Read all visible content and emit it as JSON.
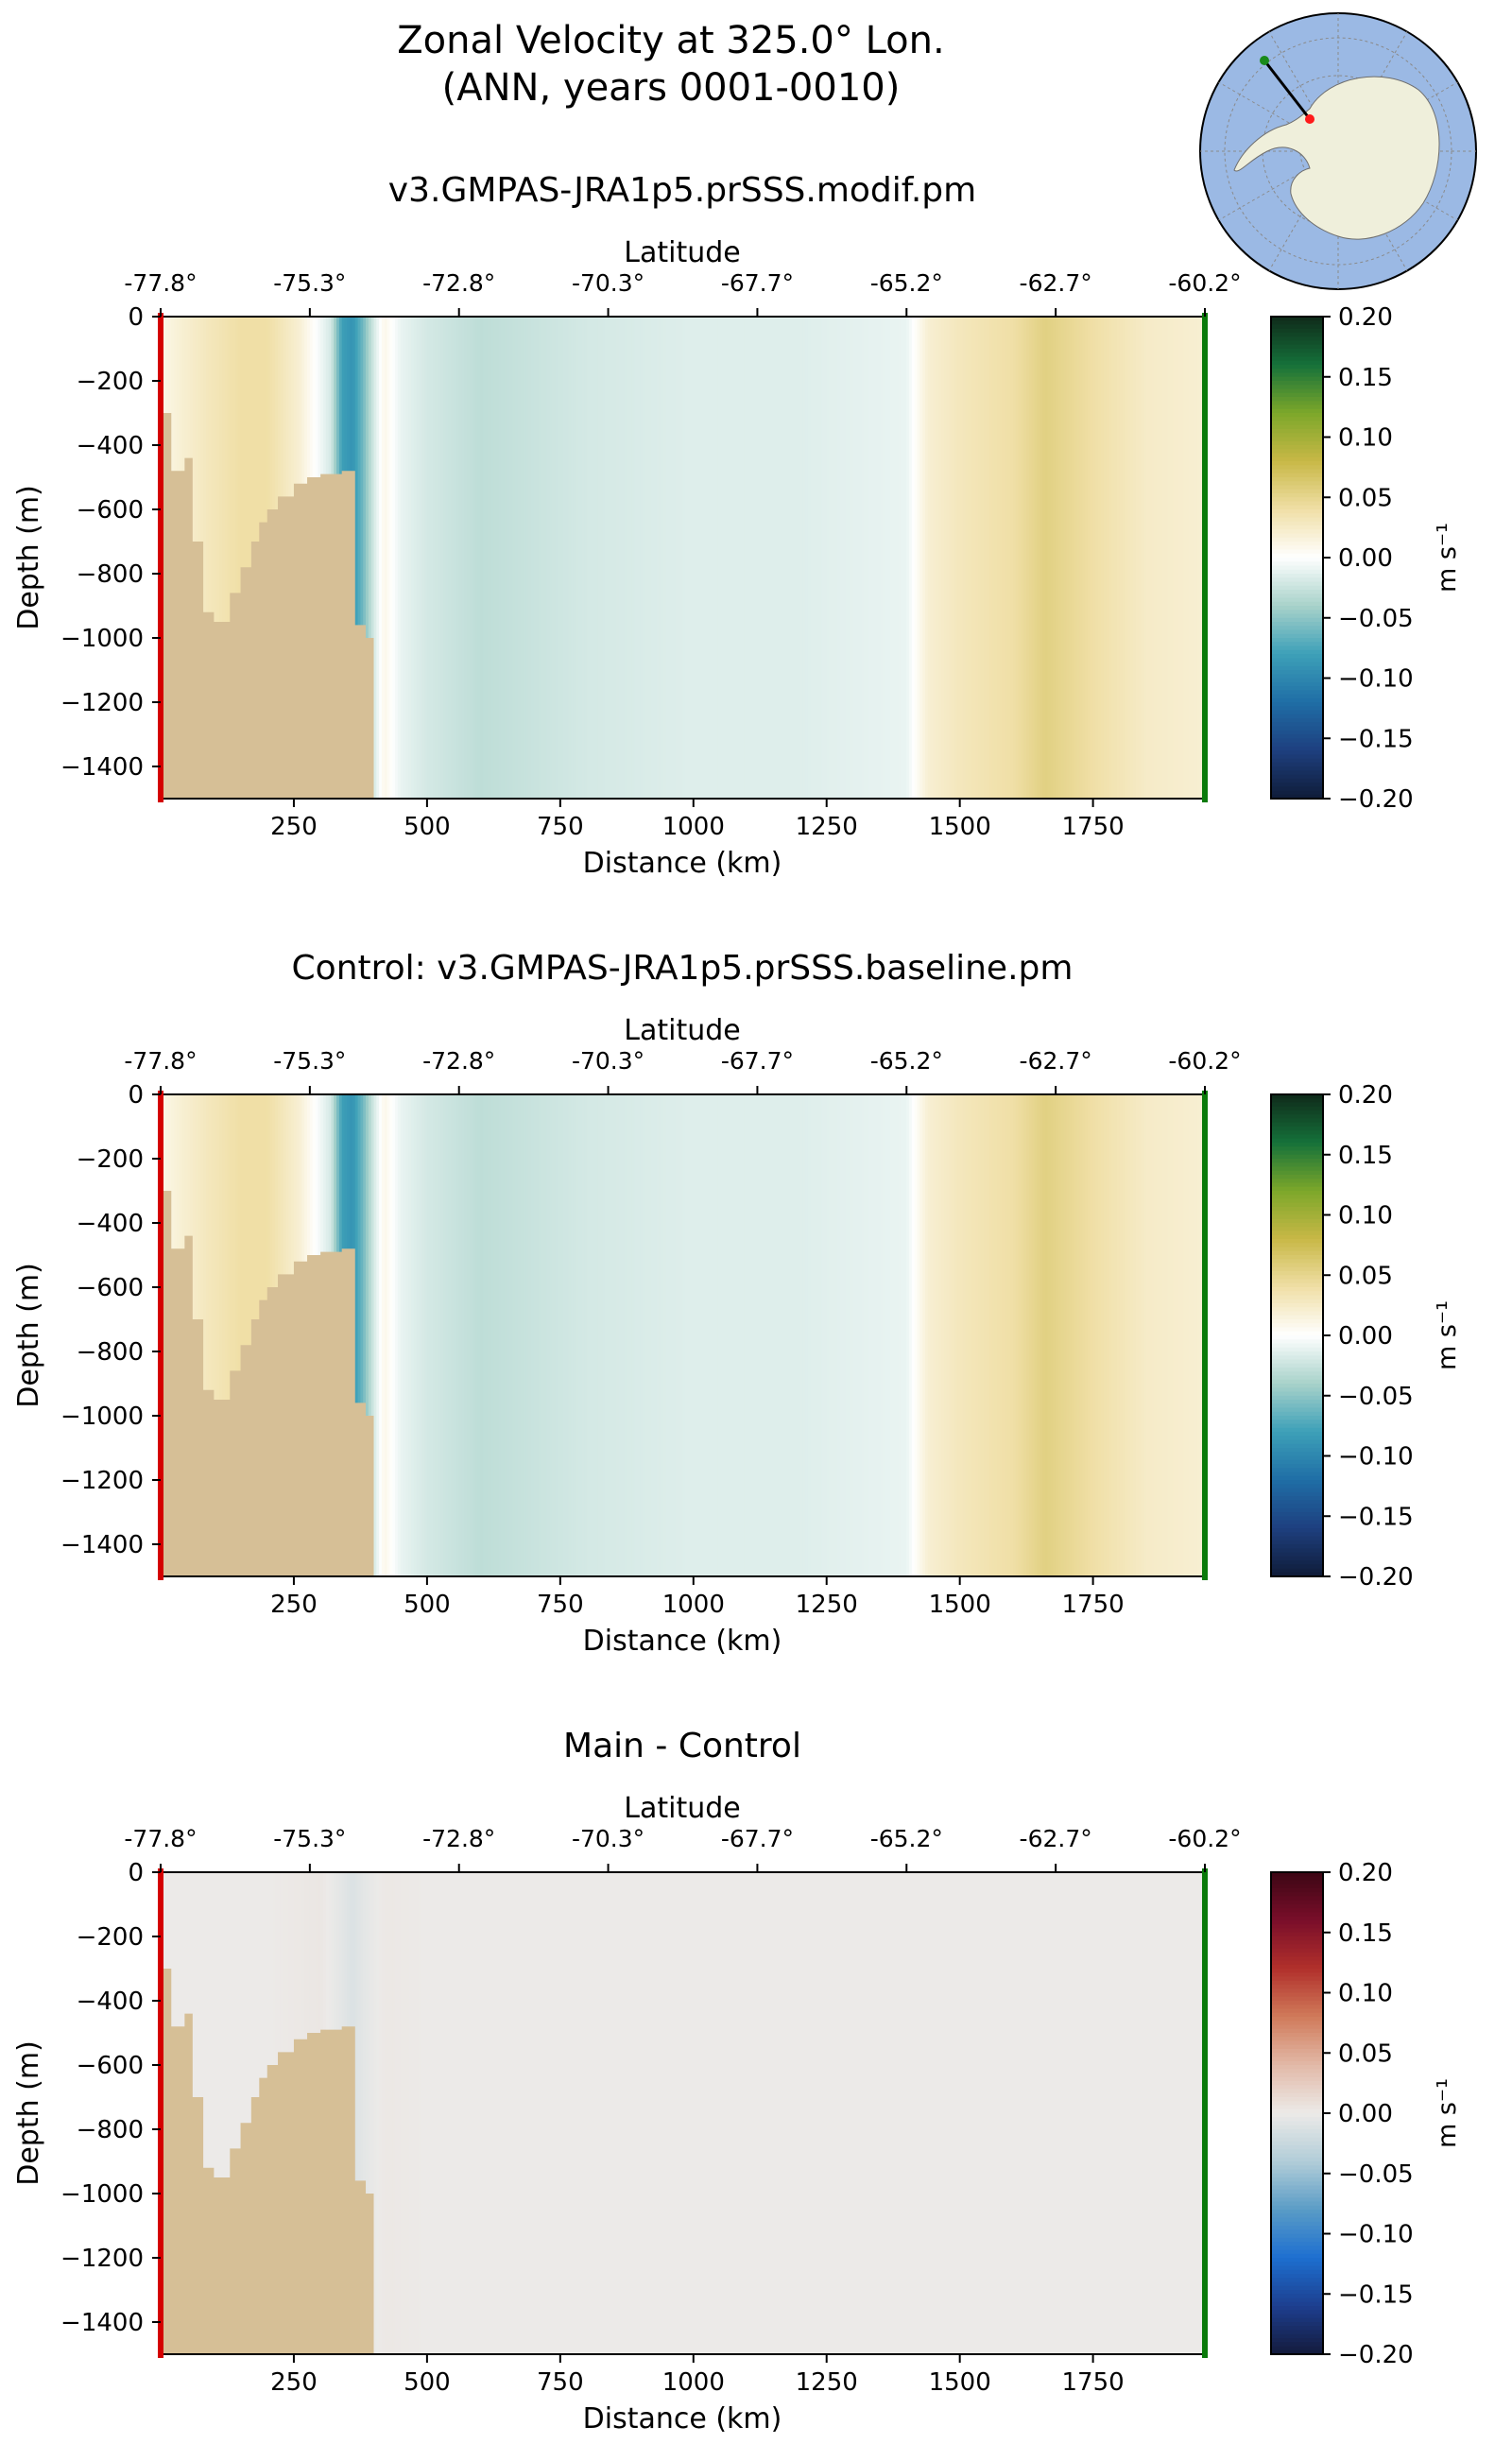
{
  "figure": {
    "title_line1": "Zonal Velocity at 325.0° Lon.",
    "title_line2": "(ANN, years 0001-0010)",
    "inset_map": {
      "description_icon": "antarctica-polar-map-icon",
      "ocean_color": "#9bb9e4",
      "land_color": "#efefdb",
      "start_marker_color": "#ff1a1a",
      "end_marker_color": "#1a8a1a"
    },
    "colors": {
      "section_start_line": "#d40000",
      "section_end_line": "#0a7a0a",
      "seafloor": "#d6bf96"
    }
  },
  "chart_data": [
    {
      "type": "heatmap",
      "title": "v3.GMPAS-JRA1p5.prSSS.modif.pm",
      "xlabel": "Distance (km)",
      "ylabel": "Depth (m)",
      "top_axis_label": "Latitude",
      "xlim": [
        0,
        1960
      ],
      "ylim": [
        -1500,
        0
      ],
      "x_ticks": [
        250,
        500,
        750,
        1000,
        1250,
        1500,
        1750
      ],
      "x_tick_labels": [
        "250",
        "500",
        "750",
        "1000",
        "1250",
        "1500",
        "1750"
      ],
      "y_ticks": [
        0,
        -200,
        -400,
        -600,
        -800,
        -1000,
        -1200,
        -1400
      ],
      "y_tick_labels": [
        "0",
        "−200",
        "−400",
        "−600",
        "−800",
        "−1000",
        "−1200",
        "−1400"
      ],
      "lat_tick_distances": [
        0,
        280,
        560,
        840,
        1120,
        1400,
        1680,
        1960
      ],
      "lat_tick_labels": [
        "-77.8°",
        "-75.3°",
        "-72.8°",
        "-70.3°",
        "-67.7°",
        "-65.2°",
        "-62.7°",
        "-60.2°"
      ],
      "colorbar": {
        "label": "m s⁻¹",
        "ticks": [
          0.2,
          0.15,
          0.1,
          0.05,
          0.0,
          -0.05,
          -0.1,
          -0.15,
          -0.2
        ],
        "tick_labels": [
          "0.20",
          "0.15",
          "0.10",
          "0.05",
          "0.00",
          "−0.05",
          "−0.10",
          "−0.15",
          "−0.20"
        ],
        "colormap": "balance-green-gold",
        "colors": [
          "#0f1c38",
          "#1e3f7f",
          "#1f6ea6",
          "#3da0b8",
          "#a8d2ca",
          "#ffffff",
          "#f0dfa6",
          "#c8b846",
          "#7ca72a",
          "#15713a",
          "#0f2a1a"
        ],
        "range": [
          -0.2,
          0.2
        ]
      },
      "velocity_profile_km": [
        0,
        40,
        90,
        150,
        200,
        260,
        320,
        340,
        360,
        380,
        400,
        420,
        450,
        500,
        600,
        800,
        1000,
        1200,
        1400,
        1440,
        1500,
        1600,
        1660,
        1750,
        1850,
        1960
      ],
      "velocity_profile_ms": [
        0.01,
        0.02,
        0.03,
        0.04,
        0.04,
        0.02,
        -0.02,
        -0.08,
        -0.09,
        -0.06,
        -0.02,
        0.01,
        -0.01,
        -0.02,
        -0.03,
        -0.02,
        -0.015,
        -0.015,
        -0.01,
        0.02,
        0.03,
        0.04,
        0.055,
        0.04,
        0.025,
        0.02
      ],
      "seafloor_km": [
        0,
        20,
        20,
        45,
        45,
        60,
        60,
        80,
        80,
        100,
        100,
        130,
        130,
        150,
        150,
        170,
        170,
        185,
        185,
        200,
        200,
        220,
        220,
        250,
        250,
        275,
        275,
        300,
        300,
        340,
        340,
        365,
        365,
        385,
        385,
        400,
        400
      ],
      "seafloor_depth_m": [
        -300,
        -300,
        -480,
        -480,
        -440,
        -440,
        -700,
        -700,
        -920,
        -920,
        -950,
        -950,
        -860,
        -860,
        -780,
        -780,
        -700,
        -700,
        -640,
        -640,
        -600,
        -600,
        -560,
        -560,
        -520,
        -520,
        -500,
        -500,
        -490,
        -490,
        -480,
        -480,
        -960,
        -960,
        -1000,
        -1000,
        -1500
      ]
    },
    {
      "type": "heatmap",
      "title": "Control: v3.GMPAS-JRA1p5.prSSS.baseline.pm",
      "xlabel": "Distance (km)",
      "ylabel": "Depth (m)",
      "top_axis_label": "Latitude",
      "xlim": [
        0,
        1960
      ],
      "ylim": [
        -1500,
        0
      ],
      "x_ticks": [
        250,
        500,
        750,
        1000,
        1250,
        1500,
        1750
      ],
      "x_tick_labels": [
        "250",
        "500",
        "750",
        "1000",
        "1250",
        "1500",
        "1750"
      ],
      "y_ticks": [
        0,
        -200,
        -400,
        -600,
        -800,
        -1000,
        -1200,
        -1400
      ],
      "y_tick_labels": [
        "0",
        "−200",
        "−400",
        "−600",
        "−800",
        "−1000",
        "−1200",
        "−1400"
      ],
      "lat_tick_distances": [
        0,
        280,
        560,
        840,
        1120,
        1400,
        1680,
        1960
      ],
      "lat_tick_labels": [
        "-77.8°",
        "-75.3°",
        "-72.8°",
        "-70.3°",
        "-67.7°",
        "-65.2°",
        "-62.7°",
        "-60.2°"
      ],
      "colorbar": {
        "label": "m s⁻¹",
        "ticks": [
          0.2,
          0.15,
          0.1,
          0.05,
          0.0,
          -0.05,
          -0.1,
          -0.15,
          -0.2
        ],
        "tick_labels": [
          "0.20",
          "0.15",
          "0.10",
          "0.05",
          "0.00",
          "−0.05",
          "−0.10",
          "−0.15",
          "−0.20"
        ],
        "colormap": "balance-green-gold",
        "colors": [
          "#0f1c38",
          "#1e3f7f",
          "#1f6ea6",
          "#3da0b8",
          "#a8d2ca",
          "#ffffff",
          "#f0dfa6",
          "#c8b846",
          "#7ca72a",
          "#15713a",
          "#0f2a1a"
        ],
        "range": [
          -0.2,
          0.2
        ]
      },
      "velocity_profile_km": [
        0,
        40,
        90,
        150,
        200,
        260,
        320,
        340,
        360,
        380,
        400,
        420,
        450,
        500,
        600,
        800,
        1000,
        1200,
        1400,
        1440,
        1500,
        1600,
        1660,
        1750,
        1850,
        1960
      ],
      "velocity_profile_ms": [
        0.01,
        0.02,
        0.03,
        0.04,
        0.04,
        0.02,
        -0.02,
        -0.08,
        -0.09,
        -0.06,
        -0.02,
        0.01,
        -0.01,
        -0.02,
        -0.03,
        -0.02,
        -0.015,
        -0.015,
        -0.01,
        0.02,
        0.03,
        0.04,
        0.055,
        0.04,
        0.025,
        0.02
      ],
      "seafloor_km": [
        0,
        20,
        20,
        45,
        45,
        60,
        60,
        80,
        80,
        100,
        100,
        130,
        130,
        150,
        150,
        170,
        170,
        185,
        185,
        200,
        200,
        220,
        220,
        250,
        250,
        275,
        275,
        300,
        300,
        340,
        340,
        365,
        365,
        385,
        385,
        400,
        400
      ],
      "seafloor_depth_m": [
        -300,
        -300,
        -480,
        -480,
        -440,
        -440,
        -700,
        -700,
        -920,
        -920,
        -950,
        -950,
        -860,
        -860,
        -780,
        -780,
        -700,
        -700,
        -640,
        -640,
        -600,
        -600,
        -560,
        -560,
        -520,
        -520,
        -500,
        -500,
        -490,
        -490,
        -480,
        -480,
        -960,
        -960,
        -1000,
        -1000,
        -1500
      ]
    },
    {
      "type": "heatmap",
      "title": "Main - Control",
      "xlabel": "Distance (km)",
      "ylabel": "Depth (m)",
      "top_axis_label": "Latitude",
      "xlim": [
        0,
        1960
      ],
      "ylim": [
        -1500,
        0
      ],
      "x_ticks": [
        250,
        500,
        750,
        1000,
        1250,
        1500,
        1750
      ],
      "x_tick_labels": [
        "250",
        "500",
        "750",
        "1000",
        "1250",
        "1500",
        "1750"
      ],
      "y_ticks": [
        0,
        -200,
        -400,
        -600,
        -800,
        -1000,
        -1200,
        -1400
      ],
      "y_tick_labels": [
        "0",
        "−200",
        "−400",
        "−600",
        "−800",
        "−1000",
        "−1200",
        "−1400"
      ],
      "lat_tick_distances": [
        0,
        280,
        560,
        840,
        1120,
        1400,
        1680,
        1960
      ],
      "lat_tick_labels": [
        "-77.8°",
        "-75.3°",
        "-72.8°",
        "-70.3°",
        "-67.7°",
        "-65.2°",
        "-62.7°",
        "-60.2°"
      ],
      "colorbar": {
        "label": "m s⁻¹",
        "ticks": [
          0.2,
          0.15,
          0.1,
          0.05,
          0.0,
          -0.05,
          -0.1,
          -0.15,
          -0.2
        ],
        "tick_labels": [
          "0.20",
          "0.15",
          "0.10",
          "0.05",
          "0.00",
          "−0.05",
          "−0.10",
          "−0.15",
          "−0.20"
        ],
        "colormap": "balance-diff",
        "colors": [
          "#141a3c",
          "#1d3f8f",
          "#1d6fd0",
          "#5a9cc6",
          "#b2cdd8",
          "#eceae8",
          "#e2b9a7",
          "#d07a5a",
          "#b1302b",
          "#7a0e2a",
          "#3c0614"
        ],
        "range": [
          -0.2,
          0.2
        ]
      },
      "velocity_profile_km": [
        0,
        200,
        300,
        340,
        360,
        380,
        420,
        500,
        1960
      ],
      "velocity_profile_ms": [
        0.0,
        0.0,
        0.003,
        -0.006,
        -0.012,
        -0.006,
        0.002,
        0.0,
        0.0
      ],
      "seafloor_km": [
        0,
        20,
        20,
        45,
        45,
        60,
        60,
        80,
        80,
        100,
        100,
        130,
        130,
        150,
        150,
        170,
        170,
        185,
        185,
        200,
        200,
        220,
        220,
        250,
        250,
        275,
        275,
        300,
        300,
        340,
        340,
        365,
        365,
        385,
        385,
        400,
        400
      ],
      "seafloor_depth_m": [
        -300,
        -300,
        -480,
        -480,
        -440,
        -440,
        -700,
        -700,
        -920,
        -920,
        -950,
        -950,
        -860,
        -860,
        -780,
        -780,
        -700,
        -700,
        -640,
        -640,
        -600,
        -600,
        -560,
        -560,
        -520,
        -520,
        -500,
        -500,
        -490,
        -490,
        -480,
        -480,
        -960,
        -960,
        -1000,
        -1000,
        -1500
      ]
    }
  ]
}
